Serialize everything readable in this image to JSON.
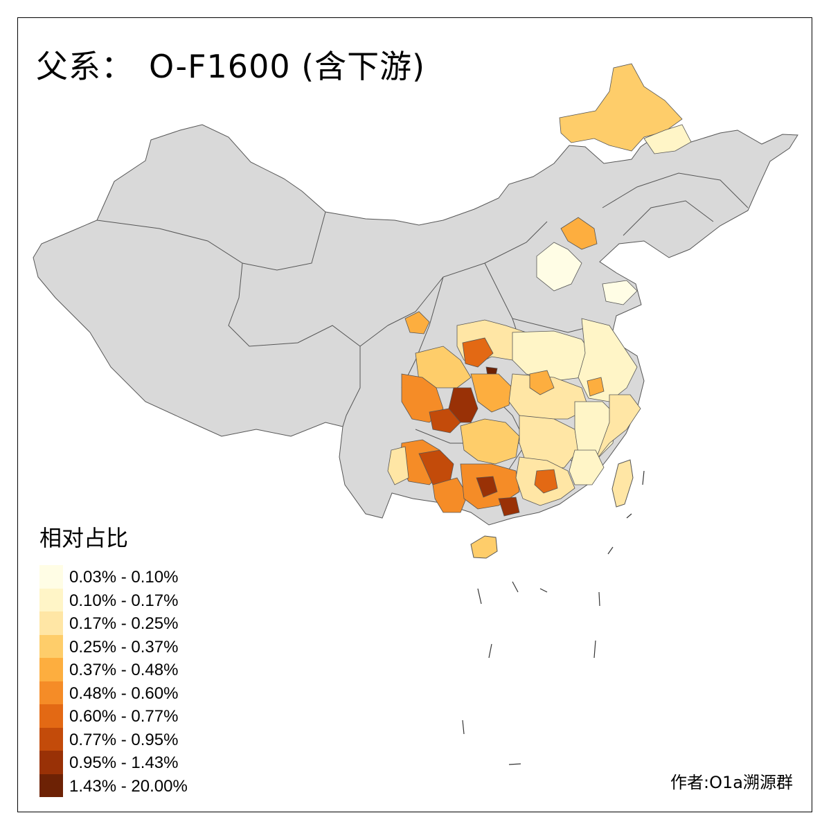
{
  "title": {
    "prefix": "父系：",
    "main": "O-F1600 (含下游)"
  },
  "legend": {
    "title": "相对占比",
    "items": [
      {
        "label": "0.03% - 0.10%",
        "color": "#FFFDE5"
      },
      {
        "label": "0.10% - 0.17%",
        "color": "#FFF5C7"
      },
      {
        "label": "0.17% - 0.25%",
        "color": "#FFE6A5"
      },
      {
        "label": "0.25% - 0.37%",
        "color": "#FECD6A"
      },
      {
        "label": "0.37% - 0.48%",
        "color": "#FDAE3F"
      },
      {
        "label": "0.48% - 0.60%",
        "color": "#F58C27"
      },
      {
        "label": "0.60% - 0.77%",
        "color": "#E36914"
      },
      {
        "label": "0.77% - 0.95%",
        "color": "#C34B0A"
      },
      {
        "label": "0.95% - 1.43%",
        "color": "#993106"
      },
      {
        "label": "1.43% - 20.00%",
        "color": "#6D2205"
      }
    ]
  },
  "credit": "作者:O1a溯源群",
  "colors": {
    "no_data": "#D9D9D9",
    "border": "#555555"
  }
}
